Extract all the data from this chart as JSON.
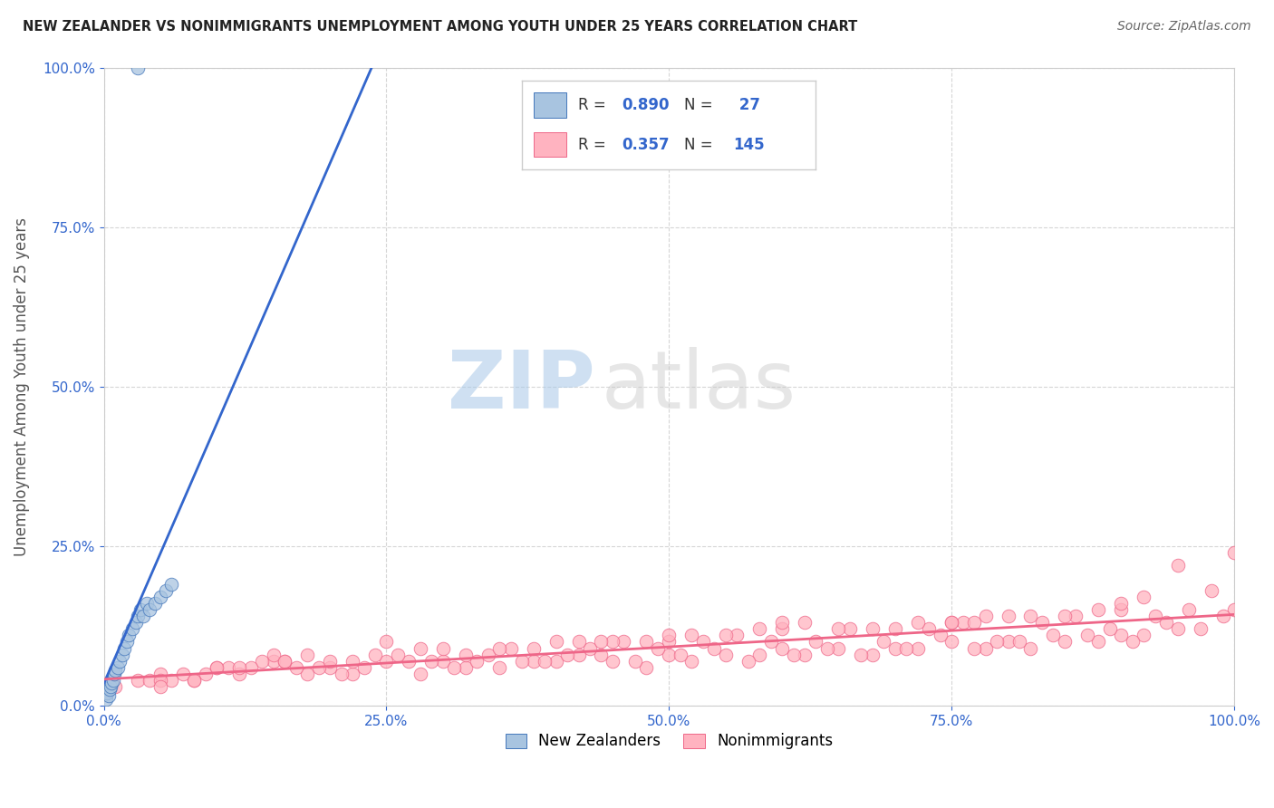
{
  "title": "NEW ZEALANDER VS NONIMMIGRANTS UNEMPLOYMENT AMONG YOUTH UNDER 25 YEARS CORRELATION CHART",
  "source": "Source: ZipAtlas.com",
  "ylabel": "Unemployment Among Youth under 25 years",
  "background_color": "#ffffff",
  "grid_color": "#cccccc",
  "blue_fill_color": "#a8c4e0",
  "blue_edge_color": "#4477bb",
  "pink_fill_color": "#ffb3c0",
  "pink_edge_color": "#ee6688",
  "blue_line_color": "#3366cc",
  "pink_line_color": "#ee6688",
  "R_blue": 0.89,
  "N_blue": 27,
  "R_pink": 0.357,
  "N_pink": 145,
  "legend_label_blue": "New Zealanders",
  "legend_label_pink": "Nonimmigrants",
  "title_color": "#222222",
  "source_color": "#666666",
  "value_color": "#3366cc",
  "label_color": "#333333",
  "blue_scatter_x": [
    0.2,
    0.3,
    0.4,
    0.5,
    0.6,
    0.7,
    0.8,
    0.9,
    1.0,
    1.2,
    1.4,
    1.6,
    1.8,
    2.0,
    2.2,
    2.5,
    2.8,
    3.0,
    3.2,
    3.5,
    3.8,
    4.0,
    4.5,
    5.0,
    5.5,
    6.0,
    3.0
  ],
  "blue_scatter_y": [
    1.0,
    2.0,
    1.5,
    2.5,
    3.0,
    3.5,
    4.0,
    5.0,
    5.5,
    6.0,
    7.0,
    8.0,
    9.0,
    10.0,
    11.0,
    12.0,
    13.0,
    14.0,
    15.0,
    14.0,
    16.0,
    15.0,
    16.0,
    17.0,
    18.0,
    19.0,
    100.0
  ],
  "pink_scatter_x": [
    1,
    3,
    5,
    8,
    10,
    12,
    15,
    18,
    20,
    22,
    25,
    28,
    30,
    32,
    35,
    38,
    40,
    42,
    45,
    48,
    50,
    52,
    55,
    58,
    60,
    62,
    65,
    68,
    70,
    72,
    75,
    78,
    80,
    82,
    85,
    88,
    90,
    92,
    95,
    98,
    100,
    4,
    7,
    11,
    14,
    17,
    19,
    21,
    24,
    27,
    29,
    31,
    34,
    37,
    39,
    41,
    44,
    47,
    49,
    51,
    54,
    57,
    59,
    61,
    64,
    67,
    69,
    71,
    74,
    77,
    79,
    81,
    84,
    87,
    89,
    91,
    94,
    97,
    99,
    6,
    9,
    13,
    16,
    23,
    26,
    33,
    36,
    43,
    46,
    53,
    56,
    63,
    66,
    73,
    76,
    83,
    86,
    93,
    96,
    20,
    30,
    50,
    70,
    85,
    40,
    60,
    80,
    95,
    15,
    45,
    55,
    65,
    75,
    35,
    5,
    90,
    42,
    58,
    72,
    88,
    18,
    62,
    38,
    48,
    78,
    22,
    52,
    68,
    82,
    12,
    32,
    8,
    28,
    92,
    16,
    44,
    77,
    100,
    25,
    10,
    60,
    5,
    90,
    50,
    75
  ],
  "pink_scatter_y": [
    3,
    4,
    5,
    4,
    6,
    5,
    7,
    5,
    6,
    5,
    7,
    5,
    7,
    6,
    6,
    7,
    7,
    8,
    7,
    6,
    8,
    7,
    8,
    8,
    9,
    8,
    9,
    8,
    9,
    9,
    10,
    9,
    10,
    9,
    10,
    10,
    11,
    11,
    12,
    18,
    15,
    4,
    5,
    6,
    7,
    6,
    6,
    5,
    8,
    7,
    7,
    6,
    8,
    7,
    7,
    8,
    8,
    7,
    9,
    8,
    9,
    7,
    10,
    8,
    9,
    8,
    10,
    9,
    11,
    9,
    10,
    10,
    11,
    11,
    12,
    10,
    13,
    12,
    14,
    4,
    5,
    6,
    7,
    6,
    8,
    7,
    9,
    9,
    10,
    10,
    11,
    10,
    12,
    12,
    13,
    13,
    14,
    14,
    15,
    7,
    9,
    10,
    12,
    14,
    10,
    12,
    14,
    22,
    8,
    10,
    11,
    12,
    13,
    9,
    4,
    15,
    10,
    12,
    13,
    15,
    8,
    13,
    9,
    10,
    14,
    7,
    11,
    12,
    14,
    6,
    8,
    4,
    9,
    17,
    7,
    10,
    13,
    24,
    10,
    6,
    13,
    3,
    16,
    11,
    13
  ],
  "watermark_zip": "ZIP",
  "watermark_atlas": "atlas",
  "tick_label_color": "#3366cc",
  "axis_spine_color": "#cccccc"
}
